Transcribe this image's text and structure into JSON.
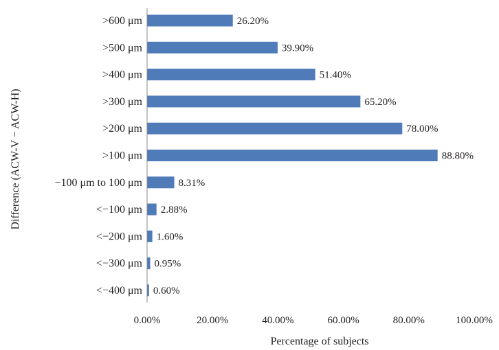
{
  "chart_data": {
    "type": "bar",
    "orientation": "horizontal",
    "title": "",
    "xlabel": "Percentage of subjects",
    "ylabel": "Difference (ACW-V − ACW-H)",
    "xlim": [
      0,
      100
    ],
    "x_ticks": [
      "0.00%",
      "20.00%",
      "40.00%",
      "60.00%",
      "80.00%",
      "100.00%"
    ],
    "grid": false,
    "legend": "none",
    "bar_color": "#4f7bb8",
    "categories": [
      ">600 μm",
      ">500 μm",
      ">400 μm",
      ">300 μm",
      ">200 μm",
      ">100 μm",
      "−100 μm to 100 μm",
      "<−100 μm",
      "<−200 μm",
      "<−300 μm",
      "<−400 μm"
    ],
    "values": [
      26.2,
      39.9,
      51.4,
      65.2,
      78.0,
      88.8,
      8.31,
      2.88,
      1.6,
      0.95,
      0.6
    ],
    "data_labels": [
      "26.20%",
      "39.90%",
      "51.40%",
      "65.20%",
      "78.00%",
      "88.80%",
      "8.31%",
      "2.88%",
      "1.60%",
      "0.95%",
      "0.60%"
    ]
  }
}
